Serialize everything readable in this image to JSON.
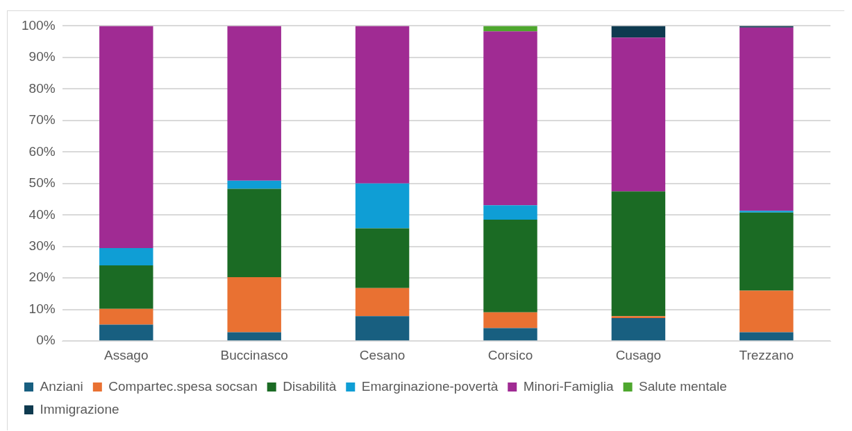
{
  "chart_data": {
    "type": "bar",
    "stacked": true,
    "categories": [
      "Assago",
      "Buccinasco",
      "Cesano",
      "Corsico",
      "Cusago",
      "Trezzano"
    ],
    "series": [
      {
        "name": "Anziani",
        "color": "#185f80",
        "values": [
          5.2,
          2.8,
          7.9,
          4.1,
          7.3,
          2.8
        ]
      },
      {
        "name": "Compartec.spesa socsan",
        "color": "#e97132",
        "values": [
          5.0,
          17.5,
          8.9,
          5.0,
          0.6,
          13.2
        ]
      },
      {
        "name": "Disabilità",
        "color": "#1b6b24",
        "values": [
          13.8,
          28.0,
          19.0,
          29.4,
          39.6,
          24.8
        ]
      },
      {
        "name": "Emarginazione-povertà",
        "color": "#0f9ed5",
        "values": [
          5.5,
          2.6,
          14.2,
          4.6,
          0,
          0.5
        ]
      },
      {
        "name": "Minori-Famiglia",
        "color": "#a02b93",
        "values": [
          70.5,
          49.1,
          50.0,
          55.2,
          48.8,
          58.2
        ]
      },
      {
        "name": "Salute mentale",
        "color": "#4ea72e",
        "values": [
          0,
          0,
          0,
          1.7,
          0,
          0
        ]
      },
      {
        "name": "Immigrazione",
        "color": "#0e3a4f",
        "values": [
          0,
          0,
          0,
          0,
          3.7,
          0.5
        ]
      }
    ],
    "ylim": [
      0,
      100
    ],
    "yticks": [
      {
        "value": 0,
        "label": "0%"
      },
      {
        "value": 10,
        "label": "10%"
      },
      {
        "value": 20,
        "label": "20%"
      },
      {
        "value": 30,
        "label": "30%"
      },
      {
        "value": 40,
        "label": "40%"
      },
      {
        "value": 50,
        "label": "50%"
      },
      {
        "value": 60,
        "label": "60%"
      },
      {
        "value": 70,
        "label": "70%"
      },
      {
        "value": 80,
        "label": "80%"
      },
      {
        "value": 90,
        "label": "90%"
      },
      {
        "value": 100,
        "label": "100%"
      }
    ],
    "grid": "y",
    "legend": "bottom"
  }
}
